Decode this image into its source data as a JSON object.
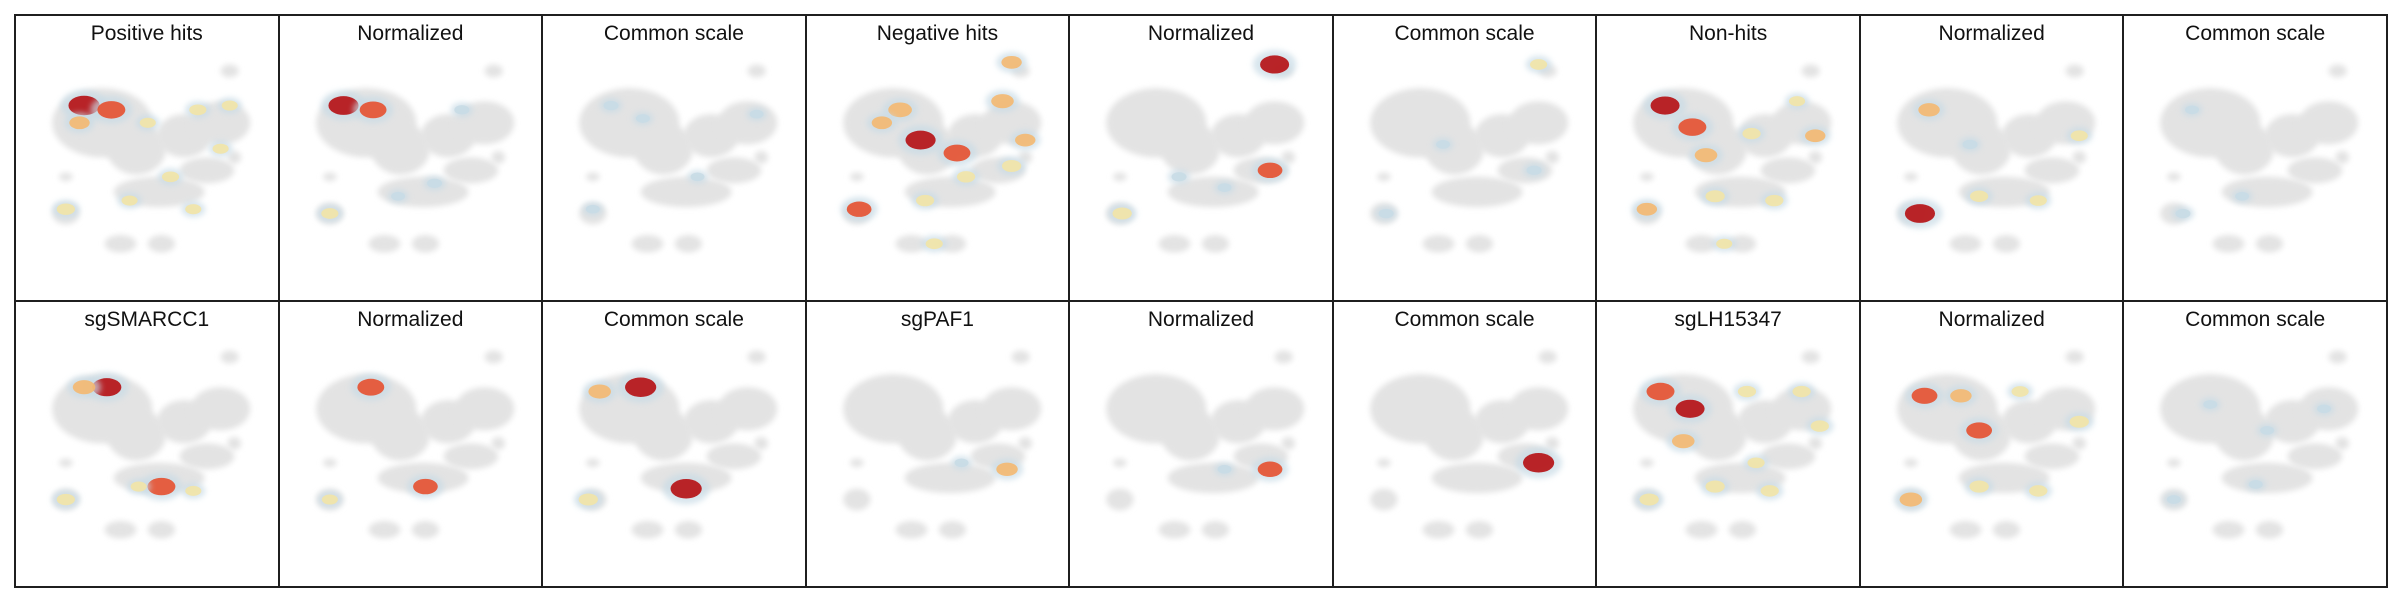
{
  "chart_data": {
    "type": "heatmap",
    "description_kind": "umap-density-panels",
    "layout": {
      "rows": 2,
      "cols": 9
    },
    "palette": [
      "#c8dbe6",
      "#f2e4a6",
      "#f4b870",
      "#e5502f",
      "#b50e12"
    ],
    "background_color": "#e3e3e3",
    "panels": [
      {
        "title": "Positive hits",
        "spots": [
          [
            0.22,
            0.22,
            1.0
          ],
          [
            0.34,
            0.24,
            0.85
          ],
          [
            0.2,
            0.3,
            0.5
          ],
          [
            0.5,
            0.3,
            0.3
          ],
          [
            0.72,
            0.24,
            0.35
          ],
          [
            0.86,
            0.22,
            0.3
          ],
          [
            0.6,
            0.55,
            0.35
          ],
          [
            0.82,
            0.42,
            0.3
          ],
          [
            0.14,
            0.7,
            0.4
          ],
          [
            0.42,
            0.66,
            0.3
          ],
          [
            0.7,
            0.7,
            0.3
          ]
        ]
      },
      {
        "title": "Normalized",
        "spots": [
          [
            0.2,
            0.22,
            0.95
          ],
          [
            0.33,
            0.24,
            0.8
          ],
          [
            0.72,
            0.24,
            0.25
          ],
          [
            0.14,
            0.72,
            0.35
          ],
          [
            0.6,
            0.58,
            0.25
          ],
          [
            0.44,
            0.64,
            0.2
          ]
        ]
      },
      {
        "title": "Common scale",
        "spots": [
          [
            0.22,
            0.22,
            0.25
          ],
          [
            0.36,
            0.28,
            0.2
          ],
          [
            0.6,
            0.55,
            0.2
          ],
          [
            0.14,
            0.7,
            0.2
          ],
          [
            0.86,
            0.26,
            0.2
          ]
        ]
      },
      {
        "title": "Negative hits",
        "spots": [
          [
            0.33,
            0.24,
            0.65
          ],
          [
            0.42,
            0.38,
            0.95
          ],
          [
            0.58,
            0.44,
            0.8
          ],
          [
            0.25,
            0.3,
            0.5
          ],
          [
            0.78,
            0.2,
            0.6
          ],
          [
            0.82,
            0.02,
            0.5
          ],
          [
            0.88,
            0.38,
            0.5
          ],
          [
            0.15,
            0.7,
            0.7
          ],
          [
            0.44,
            0.66,
            0.4
          ],
          [
            0.82,
            0.5,
            0.45
          ],
          [
            0.48,
            0.86,
            0.35
          ],
          [
            0.62,
            0.55,
            0.4
          ]
        ]
      },
      {
        "title": "Normalized",
        "spots": [
          [
            0.82,
            0.03,
            0.9
          ],
          [
            0.8,
            0.52,
            0.7
          ],
          [
            0.15,
            0.72,
            0.45
          ],
          [
            0.4,
            0.55,
            0.25
          ],
          [
            0.6,
            0.6,
            0.2
          ]
        ]
      },
      {
        "title": "Common scale",
        "spots": [
          [
            0.82,
            0.03,
            0.35
          ],
          [
            0.8,
            0.52,
            0.25
          ],
          [
            0.15,
            0.72,
            0.25
          ],
          [
            0.4,
            0.4,
            0.2
          ]
        ]
      },
      {
        "title": "Non-hits",
        "spots": [
          [
            0.22,
            0.22,
            0.9
          ],
          [
            0.34,
            0.32,
            0.85
          ],
          [
            0.4,
            0.45,
            0.6
          ],
          [
            0.6,
            0.35,
            0.4
          ],
          [
            0.88,
            0.36,
            0.5
          ],
          [
            0.14,
            0.7,
            0.5
          ],
          [
            0.44,
            0.64,
            0.45
          ],
          [
            0.7,
            0.66,
            0.4
          ],
          [
            0.48,
            0.86,
            0.3
          ],
          [
            0.8,
            0.2,
            0.3
          ]
        ]
      },
      {
        "title": "Normalized",
        "spots": [
          [
            0.18,
            0.72,
            0.95
          ],
          [
            0.22,
            0.24,
            0.55
          ],
          [
            0.44,
            0.64,
            0.4
          ],
          [
            0.7,
            0.66,
            0.35
          ],
          [
            0.88,
            0.36,
            0.35
          ],
          [
            0.4,
            0.4,
            0.25
          ]
        ]
      },
      {
        "title": "Common scale",
        "spots": [
          [
            0.18,
            0.72,
            0.25
          ],
          [
            0.22,
            0.24,
            0.2
          ],
          [
            0.44,
            0.64,
            0.2
          ]
        ]
      },
      {
        "title": "sgSMARCC1",
        "spots": [
          [
            0.32,
            0.2,
            0.9
          ],
          [
            0.22,
            0.2,
            0.6
          ],
          [
            0.56,
            0.66,
            0.85
          ],
          [
            0.14,
            0.72,
            0.4
          ],
          [
            0.46,
            0.66,
            0.3
          ],
          [
            0.7,
            0.68,
            0.3
          ]
        ]
      },
      {
        "title": "Normalized",
        "spots": [
          [
            0.32,
            0.2,
            0.8
          ],
          [
            0.56,
            0.66,
            0.7
          ],
          [
            0.14,
            0.72,
            0.3
          ]
        ]
      },
      {
        "title": "Common scale",
        "spots": [
          [
            0.35,
            0.2,
            1.0
          ],
          [
            0.55,
            0.67,
            1.0
          ],
          [
            0.17,
            0.22,
            0.6
          ],
          [
            0.12,
            0.72,
            0.45
          ]
        ]
      },
      {
        "title": "sgPAF1",
        "spots": [
          [
            0.8,
            0.58,
            0.55
          ],
          [
            0.6,
            0.55,
            0.2
          ]
        ]
      },
      {
        "title": "Normalized",
        "spots": [
          [
            0.8,
            0.58,
            0.7
          ],
          [
            0.6,
            0.58,
            0.2
          ]
        ]
      },
      {
        "title": "Common scale",
        "spots": [
          [
            0.82,
            0.55,
            1.0
          ]
        ]
      },
      {
        "title": "sgLH15347",
        "spots": [
          [
            0.2,
            0.22,
            0.85
          ],
          [
            0.33,
            0.3,
            0.9
          ],
          [
            0.3,
            0.45,
            0.6
          ],
          [
            0.58,
            0.22,
            0.4
          ],
          [
            0.82,
            0.22,
            0.4
          ],
          [
            0.9,
            0.38,
            0.4
          ],
          [
            0.15,
            0.72,
            0.45
          ],
          [
            0.44,
            0.66,
            0.45
          ],
          [
            0.68,
            0.68,
            0.4
          ],
          [
            0.62,
            0.55,
            0.35
          ]
        ]
      },
      {
        "title": "Normalized",
        "spots": [
          [
            0.2,
            0.24,
            0.75
          ],
          [
            0.36,
            0.24,
            0.55
          ],
          [
            0.44,
            0.4,
            0.75
          ],
          [
            0.62,
            0.22,
            0.35
          ],
          [
            0.88,
            0.36,
            0.45
          ],
          [
            0.14,
            0.72,
            0.6
          ],
          [
            0.44,
            0.66,
            0.45
          ],
          [
            0.7,
            0.68,
            0.4
          ]
        ]
      },
      {
        "title": "Common scale",
        "spots": [
          [
            0.3,
            0.28,
            0.2
          ],
          [
            0.55,
            0.4,
            0.2
          ],
          [
            0.8,
            0.3,
            0.2
          ],
          [
            0.14,
            0.72,
            0.2
          ],
          [
            0.5,
            0.65,
            0.2
          ]
        ]
      }
    ]
  }
}
